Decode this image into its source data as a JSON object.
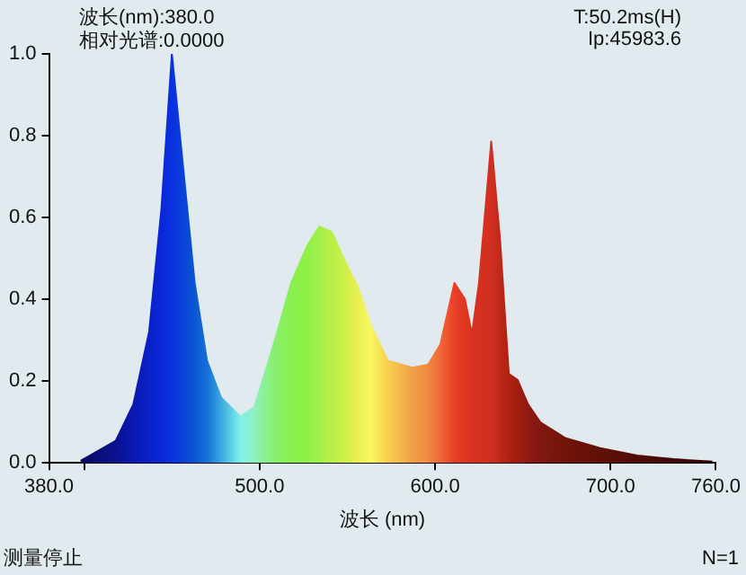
{
  "chart_data": {
    "type": "area",
    "xlabel": "波长 (nm)",
    "annotations": [
      "波长(nm):380.0",
      "相对光谱:0.0000",
      "T:50.2ms(H)",
      "Ip:45983.6",
      "测量停止",
      "N=1"
    ],
    "x": [
      398,
      418,
      428,
      437,
      444,
      450,
      456,
      463,
      470,
      478,
      489,
      497,
      508,
      518,
      527,
      534,
      541,
      549,
      556,
      563,
      573,
      587,
      596,
      603,
      611,
      617,
      621,
      625,
      632,
      637,
      642,
      647,
      653,
      660,
      674,
      694,
      715,
      736,
      758
    ],
    "series": [
      {
        "values": [
          0.005,
          0.054,
          0.143,
          0.32,
          0.62,
          1.0,
          0.74,
          0.44,
          0.25,
          0.16,
          0.113,
          0.136,
          0.29,
          0.44,
          0.53,
          0.578,
          0.565,
          0.49,
          0.43,
          0.34,
          0.25,
          0.233,
          0.24,
          0.29,
          0.44,
          0.4,
          0.315,
          0.44,
          0.786,
          0.547,
          0.218,
          0.203,
          0.143,
          0.099,
          0.061,
          0.036,
          0.018,
          0.009,
          0.003
        ],
        "colors": [
          "#0a0a60",
          "#0a1290",
          "#0a18b0",
          "#0a20c8",
          "#0a28d8",
          "#0a30e0",
          "#0a40d8",
          "#0a58d0",
          "#1470d8",
          "#3aa8e0",
          "#80f0e8",
          "#90f0c0",
          "#88f070",
          "#88f050",
          "#90f048",
          "#a0f048",
          "#b8f048",
          "#d0f048",
          "#e8f050",
          "#f8f860",
          "#f8d050",
          "#f0a048",
          "#f08840",
          "#f06838",
          "#e84028",
          "#e03820",
          "#d83020",
          "#d83020",
          "#d03020",
          "#c02818",
          "#b02010",
          "#a01c10",
          "#901a10",
          "#801810",
          "#701408",
          "#601008",
          "#500c08",
          "#400808",
          "#300404"
        ]
      }
    ],
    "xlim": [
      380,
      760
    ],
    "xticks": [
      {
        "value": 380,
        "label": "380.0"
      },
      {
        "value": 400,
        "label": null
      },
      {
        "value": 500,
        "label": "500.0"
      },
      {
        "value": 600,
        "label": "600.0"
      },
      {
        "value": 700,
        "label": "700.0"
      },
      {
        "value": 760,
        "label": "760.0"
      }
    ],
    "ylim": [
      0,
      1
    ],
    "yticks": [
      {
        "value": 0,
        "label": "0.0"
      },
      {
        "value": 0.2,
        "label": "0.2"
      },
      {
        "value": 0.4,
        "label": "0.4"
      },
      {
        "value": 0.6,
        "label": "0.6"
      },
      {
        "value": 0.8,
        "label": "0.8"
      },
      {
        "value": 1,
        "label": "1.0"
      }
    ],
    "grid": false,
    "legend": false
  }
}
